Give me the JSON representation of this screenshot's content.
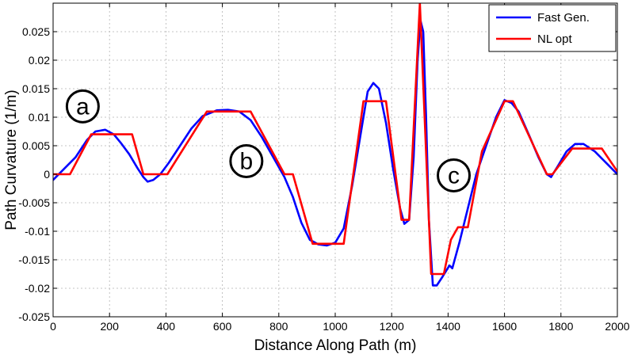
{
  "chart_data": {
    "type": "line",
    "title": "",
    "xlabel": "Distance Along Path (m)",
    "ylabel": "Path Curvature (1/m)",
    "xlim": [
      0,
      2000
    ],
    "ylim": [
      -0.025,
      0.03
    ],
    "xticks": [
      0,
      200,
      400,
      600,
      800,
      1000,
      1200,
      1400,
      1600,
      1800,
      2000
    ],
    "xtick_labels": [
      "0",
      "200",
      "400",
      "600",
      "800",
      "1000",
      "1200",
      "1400",
      "1600",
      "1800",
      "2000"
    ],
    "yticks": [
      -0.025,
      -0.02,
      -0.015,
      -0.01,
      -0.005,
      0,
      0.005,
      0.01,
      0.015,
      0.02,
      0.025
    ],
    "ytick_labels": [
      "-0.025",
      "-0.02",
      "-0.015",
      "-0.01",
      "-0.005",
      "0",
      "0.005",
      "0.01",
      "0.015",
      "0.02",
      "0.025"
    ],
    "grid": true,
    "legend_position": "top-right",
    "series": [
      {
        "name": "Fast Gen.",
        "color": "#0000ff",
        "points": [
          [
            0,
            -0.001
          ],
          [
            30,
            0.0005
          ],
          [
            80,
            0.003
          ],
          [
            120,
            0.006
          ],
          [
            150,
            0.0075
          ],
          [
            185,
            0.0078
          ],
          [
            215,
            0.007
          ],
          [
            240,
            0.0055
          ],
          [
            270,
            0.0035
          ],
          [
            300,
            0.001
          ],
          [
            320,
            -0.0005
          ],
          [
            335,
            -0.0013
          ],
          [
            355,
            -0.001
          ],
          [
            380,
            0
          ],
          [
            410,
            0.002
          ],
          [
            450,
            0.005
          ],
          [
            490,
            0.008
          ],
          [
            530,
            0.0102
          ],
          [
            580,
            0.0112
          ],
          [
            620,
            0.0113
          ],
          [
            660,
            0.011
          ],
          [
            700,
            0.0095
          ],
          [
            740,
            0.0065
          ],
          [
            780,
            0.003
          ],
          [
            820,
            -0.0005
          ],
          [
            850,
            -0.004
          ],
          [
            880,
            -0.0085
          ],
          [
            910,
            -0.0115
          ],
          [
            940,
            -0.0123
          ],
          [
            970,
            -0.0125
          ],
          [
            1000,
            -0.012
          ],
          [
            1030,
            -0.0095
          ],
          [
            1060,
            -0.002
          ],
          [
            1090,
            0.007
          ],
          [
            1115,
            0.0145
          ],
          [
            1135,
            0.016
          ],
          [
            1155,
            0.015
          ],
          [
            1180,
            0.009
          ],
          [
            1205,
            0.001
          ],
          [
            1230,
            -0.006
          ],
          [
            1245,
            -0.0087
          ],
          [
            1262,
            -0.008
          ],
          [
            1278,
            0.003
          ],
          [
            1292,
            0.02
          ],
          [
            1302,
            0.027
          ],
          [
            1312,
            0.025
          ],
          [
            1322,
            0.01
          ],
          [
            1332,
            -0.008
          ],
          [
            1346,
            -0.0195
          ],
          [
            1360,
            -0.0195
          ],
          [
            1380,
            -0.018
          ],
          [
            1405,
            -0.016
          ],
          [
            1415,
            -0.0165
          ],
          [
            1440,
            -0.012
          ],
          [
            1470,
            -0.006
          ],
          [
            1500,
            0
          ],
          [
            1535,
            0.005
          ],
          [
            1570,
            0.01
          ],
          [
            1600,
            0.013
          ],
          [
            1625,
            0.0125
          ],
          [
            1650,
            0.011
          ],
          [
            1690,
            0.0065
          ],
          [
            1720,
            0.003
          ],
          [
            1750,
            0
          ],
          [
            1765,
            -0.0005
          ],
          [
            1790,
            0.0015
          ],
          [
            1820,
            0.004
          ],
          [
            1850,
            0.0053
          ],
          [
            1880,
            0.0053
          ],
          [
            1920,
            0.004
          ],
          [
            1960,
            0.002
          ],
          [
            2000,
            0
          ]
        ]
      },
      {
        "name": "NL opt",
        "color": "#ff0000",
        "points": [
          [
            0,
            0
          ],
          [
            60,
            0
          ],
          [
            135,
            0.007
          ],
          [
            280,
            0.007
          ],
          [
            320,
            0
          ],
          [
            405,
            0
          ],
          [
            545,
            0.011
          ],
          [
            700,
            0.011
          ],
          [
            820,
            0
          ],
          [
            850,
            0
          ],
          [
            920,
            -0.0122
          ],
          [
            1030,
            -0.0122
          ],
          [
            1100,
            0.0128
          ],
          [
            1180,
            0.0128
          ],
          [
            1235,
            -0.008
          ],
          [
            1262,
            -0.008
          ],
          [
            1300,
            0.03
          ],
          [
            1340,
            -0.0175
          ],
          [
            1385,
            -0.0175
          ],
          [
            1410,
            -0.0115
          ],
          [
            1435,
            -0.0093
          ],
          [
            1470,
            -0.0093
          ],
          [
            1520,
            0.004
          ],
          [
            1600,
            0.0128
          ],
          [
            1630,
            0.0128
          ],
          [
            1750,
            0
          ],
          [
            1770,
            0
          ],
          [
            1840,
            0.0045
          ],
          [
            1945,
            0.0045
          ],
          [
            2000,
            0.0005
          ]
        ]
      }
    ],
    "annotations": [
      {
        "label": "a",
        "x": 105,
        "y": 0.0119
      },
      {
        "label": "b",
        "x": 685,
        "y": 0.0023
      },
      {
        "label": "c",
        "x": 1420,
        "y": -0.0002
      }
    ]
  }
}
